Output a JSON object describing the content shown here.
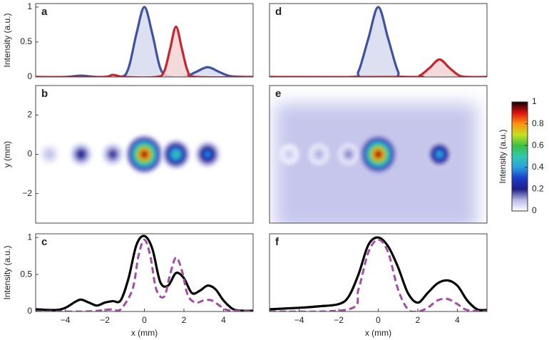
{
  "chart_data": [
    {
      "type": "area",
      "label": "a",
      "ylabel": "Intensity (a.u.)",
      "xlim": [
        -5.5,
        5.5
      ],
      "ylim": [
        0,
        1.05
      ],
      "yticks": [
        0,
        0.5,
        1
      ],
      "series": [
        {
          "color": "#3f51a3",
          "fill": "#d6dbee",
          "x": [
            -5.5,
            -4,
            -3.2,
            -2.4,
            -1.2,
            -0.8,
            -0.4,
            0,
            0.4,
            0.8,
            1.2,
            2,
            2.6,
            3.2,
            3.8,
            4.4,
            5.5
          ],
          "values": [
            0,
            0,
            0.02,
            0,
            0,
            0.13,
            0.62,
            1,
            0.62,
            0.13,
            0.01,
            0,
            0.07,
            0.14,
            0.07,
            0.01,
            0
          ]
        },
        {
          "color": "#c8252f",
          "fill": "#f2d3d5",
          "x": [
            -5.5,
            -2.2,
            -1.6,
            -1,
            0.6,
            1,
            1.3,
            1.6,
            1.9,
            2.2,
            2.6,
            5.5
          ],
          "values": [
            0,
            0,
            0.03,
            0,
            0,
            0.08,
            0.4,
            0.72,
            0.4,
            0.08,
            0,
            0
          ]
        }
      ]
    },
    {
      "type": "heatmap",
      "label": "b",
      "ylabel": "y (mm)",
      "xlim": [
        -5.5,
        5.5
      ],
      "ylim": [
        -3.5,
        3.5
      ],
      "yticks": [
        {
          "value": -2,
          "label": "−2"
        },
        0,
        2
      ],
      "x": [
        -4.8,
        -3.2,
        -1.6,
        0,
        1.6,
        3.2
      ],
      "y": [
        0,
        0,
        0,
        0,
        0,
        0
      ],
      "values": [
        0.1,
        0.25,
        0.22,
        1,
        0.55,
        0.4
      ]
    },
    {
      "type": "line",
      "label": "c",
      "ylabel": "Intensity (a.u.)",
      "xlabel": "x (mm)",
      "xlim": [
        -5.5,
        5.5
      ],
      "ylim": [
        0,
        1.05
      ],
      "yticks": [
        0,
        0.5,
        1
      ],
      "xticks": [
        {
          "value": -4,
          "label": "−4"
        },
        {
          "value": -2,
          "label": "−2"
        },
        0,
        2,
        4
      ],
      "series": [
        {
          "color": "#000000",
          "x": [
            -5.5,
            -4.5,
            -4,
            -3.5,
            -3.2,
            -2.8,
            -2.4,
            -2,
            -1.6,
            -1.2,
            -0.8,
            -0.4,
            0,
            0.4,
            0.8,
            1.2,
            1.6,
            2,
            2.4,
            2.8,
            3.2,
            3.6,
            4,
            4.5,
            5,
            5.5
          ],
          "values": [
            0.03,
            0.02,
            0.05,
            0.13,
            0.16,
            0.12,
            0.08,
            0.12,
            0.14,
            0.15,
            0.45,
            0.9,
            1.02,
            0.85,
            0.4,
            0.35,
            0.52,
            0.45,
            0.25,
            0.28,
            0.35,
            0.3,
            0.15,
            0.03,
            0.01,
            0.01
          ]
        },
        {
          "color": "#a64ca6",
          "dash": true,
          "x": [
            -5.5,
            -3,
            -2,
            -1.6,
            -1.2,
            -0.6,
            -0.3,
            0,
            0.3,
            0.6,
            1,
            1.3,
            1.6,
            1.9,
            2.2,
            2.6,
            3,
            3.4,
            3.8,
            4.2,
            5.5
          ],
          "values": [
            0,
            0,
            0.02,
            0.03,
            0.03,
            0.3,
            0.75,
            0.97,
            0.75,
            0.3,
            0.2,
            0.5,
            0.73,
            0.55,
            0.22,
            0.12,
            0.15,
            0.15,
            0.08,
            0.02,
            0
          ]
        }
      ]
    },
    {
      "type": "area",
      "label": "d",
      "xlim": [
        -5.5,
        5.5
      ],
      "ylim": [
        0,
        1.05
      ],
      "series": [
        {
          "color": "#3f51a3",
          "fill": "#d6dbee",
          "x": [
            -5.5,
            -1.4,
            -1,
            -0.5,
            0,
            0.5,
            1,
            1.4,
            5.5
          ],
          "values": [
            0,
            0,
            0.08,
            0.55,
            1,
            0.55,
            0.08,
            0,
            0
          ]
        },
        {
          "color": "#c8252f",
          "fill": "#f2d3d5",
          "x": [
            -5.5,
            1.6,
            2.1,
            2.6,
            3.1,
            3.6,
            4.1,
            4.6,
            5.5
          ],
          "values": [
            0,
            0,
            0.02,
            0.13,
            0.25,
            0.13,
            0.02,
            0,
            0
          ]
        }
      ]
    },
    {
      "type": "heatmap",
      "label": "e",
      "xlim": [
        -5.5,
        5.5
      ],
      "ylim": [
        -3.5,
        3.5
      ],
      "background": 0.08,
      "x": [
        -4.5,
        -3,
        -1.5,
        0,
        3.1
      ],
      "y": [
        0,
        0,
        0,
        0,
        0
      ],
      "values": [
        0.08,
        0.12,
        0.15,
        1,
        0.45
      ]
    },
    {
      "type": "line",
      "label": "f",
      "xlabel": "x (mm)",
      "xlim": [
        -5.5,
        5.5
      ],
      "ylim": [
        0,
        1.05
      ],
      "xticks": [
        {
          "value": -4,
          "label": "−4"
        },
        {
          "value": -2,
          "label": "−2"
        },
        0,
        2,
        4
      ],
      "series": [
        {
          "color": "#000000",
          "x": [
            -5.5,
            -4,
            -3,
            -2,
            -1.5,
            -1,
            -0.5,
            0,
            0.5,
            1,
            1.5,
            2,
            2.5,
            3,
            3.5,
            4,
            4.5,
            5,
            5.5
          ],
          "values": [
            0.03,
            0.05,
            0.07,
            0.1,
            0.2,
            0.5,
            0.9,
            1,
            0.88,
            0.6,
            0.25,
            0.12,
            0.25,
            0.38,
            0.42,
            0.35,
            0.15,
            0.03,
            0.02
          ]
        },
        {
          "color": "#a64ca6",
          "dash": true,
          "x": [
            -5.5,
            -1.5,
            -1,
            -0.5,
            0,
            0.5,
            1,
            1.5,
            2,
            2.5,
            3,
            3.5,
            4,
            4.5,
            5.5
          ],
          "values": [
            0,
            0.03,
            0.3,
            0.8,
            0.97,
            0.8,
            0.3,
            0.03,
            0,
            0.05,
            0.15,
            0.17,
            0.1,
            0.02,
            0
          ]
        }
      ]
    },
    {
      "type": "colorbar",
      "ylabel": "Intensity (a.u.)",
      "ylim": [
        0,
        1
      ],
      "yticks": [
        0,
        0.2,
        0.4,
        0.6,
        0.8,
        1
      ],
      "colormap": [
        "#ffffff",
        "#b8b8e8",
        "#1e1e8c",
        "#1a3cc8",
        "#2aa0e0",
        "#30c8b0",
        "#3cc040",
        "#c8e020",
        "#ff9010",
        "#e01010",
        "#100000"
      ]
    }
  ]
}
